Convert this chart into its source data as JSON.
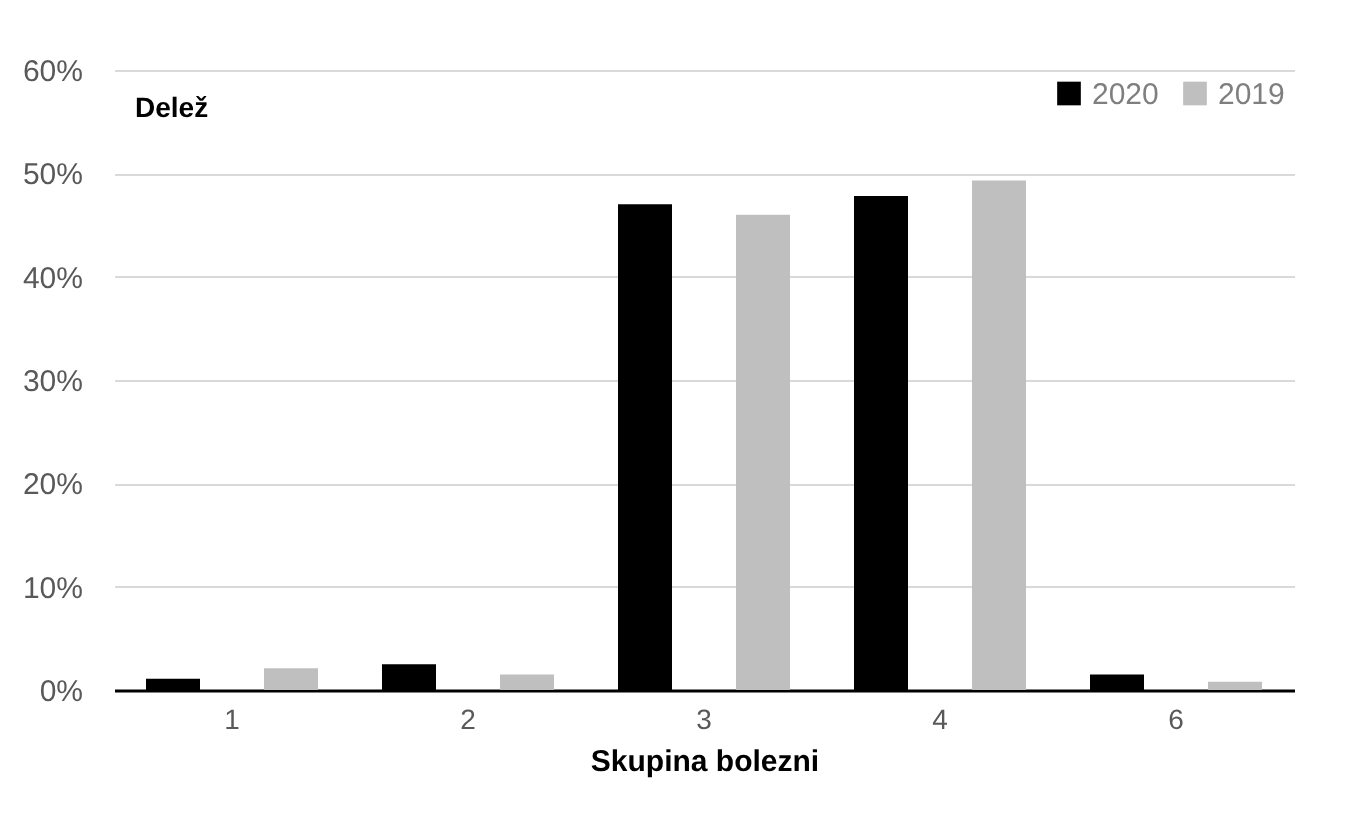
{
  "chart_data": {
    "type": "bar",
    "xlabel": "Skupina bolezni",
    "ylabel": "Delež",
    "categories": [
      "1",
      "2",
      "3",
      "4",
      "6"
    ],
    "series": [
      {
        "name": "2020",
        "color": "#000000",
        "values": [
          1.1,
          2.5,
          47.0,
          47.8,
          1.5
        ]
      },
      {
        "name": "2019",
        "color": "#bfbfbf",
        "values": [
          2.1,
          1.5,
          46.0,
          49.3,
          0.8
        ]
      }
    ],
    "ylim": [
      0,
      60
    ],
    "yticks": [
      {
        "value": 0,
        "label": "0%"
      },
      {
        "value": 10,
        "label": "10%"
      },
      {
        "value": 20,
        "label": "20%"
      },
      {
        "value": 30,
        "label": "30%"
      },
      {
        "value": 40,
        "label": "40%"
      },
      {
        "value": 50,
        "label": "50%"
      },
      {
        "value": 60,
        "label": "60%"
      }
    ],
    "grid": "y",
    "legend": "top right"
  }
}
